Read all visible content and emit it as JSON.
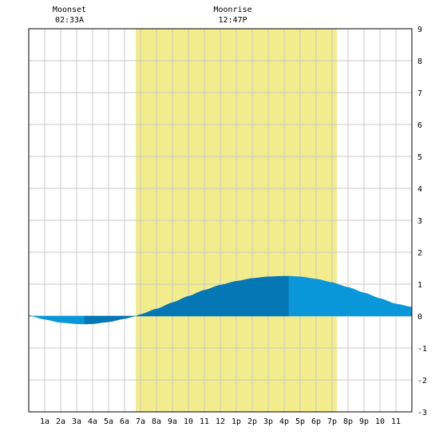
{
  "chart_data": {
    "type": "area",
    "x_categories": [
      "1a",
      "2a",
      "3a",
      "4a",
      "5a",
      "6a",
      "7a",
      "8a",
      "9a",
      "10",
      "11",
      "12",
      "1p",
      "2p",
      "3p",
      "4p",
      "5p",
      "6p",
      "7p",
      "8p",
      "9p",
      "10",
      "11"
    ],
    "x_range_hours": [
      0,
      24
    ],
    "ylim": [
      -3,
      9
    ],
    "yticks": [
      "-3",
      "-2",
      "-1",
      "0",
      "1",
      "2",
      "3",
      "4",
      "5",
      "6",
      "7",
      "8",
      "9"
    ],
    "grid": true,
    "daylight": {
      "start_hour": 6.7,
      "end_hour": 19.3,
      "color": "#f3ec8c"
    },
    "moon_events": [
      {
        "label": "Moonset",
        "time": "02:33A",
        "hour": 2.55
      },
      {
        "label": "Moonrise",
        "time": "12:47P",
        "hour": 12.78
      }
    ],
    "tide_series": {
      "x_hours": [
        0,
        1,
        2,
        3,
        3.5,
        4,
        5,
        6,
        6.7,
        7,
        8,
        9,
        10,
        11,
        12,
        13,
        14,
        15,
        16,
        16.3,
        17,
        18,
        19,
        20,
        21,
        22,
        23,
        24
      ],
      "values": [
        0.02,
        -0.1,
        -0.2,
        -0.24,
        -0.25,
        -0.24,
        -0.18,
        -0.08,
        0.0,
        0.05,
        0.22,
        0.42,
        0.62,
        0.81,
        0.97,
        1.09,
        1.18,
        1.23,
        1.25,
        1.25,
        1.23,
        1.16,
        1.05,
        0.9,
        0.73,
        0.55,
        0.38,
        0.28
      ],
      "segments": [
        {
          "from_hour": 0,
          "to_hour": 3.5,
          "color": "#0a97d9"
        },
        {
          "from_hour": 3.5,
          "to_hour": 6.7,
          "color": "#0477b4"
        },
        {
          "from_hour": 6.7,
          "to_hour": 16.3,
          "color": "#0477b4"
        },
        {
          "from_hour": 16.3,
          "to_hour": 24,
          "color": "#0a97d9"
        }
      ]
    }
  }
}
